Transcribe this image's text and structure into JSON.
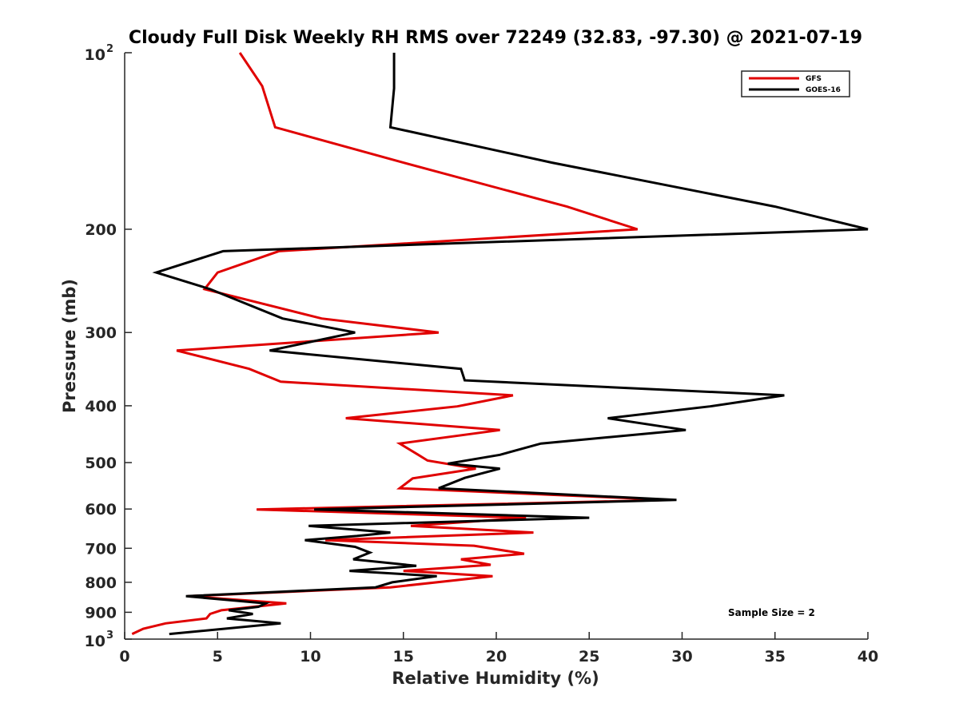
{
  "chart_data": {
    "type": "line",
    "title": "Cloudy Full Disk Weekly RH RMS over 72249 (32.83, -97.30) @ 2021-07-19",
    "xlabel": "Relative Humidity (%)",
    "ylabel": "Pressure (mb)",
    "xlim": [
      0,
      40
    ],
    "ylim": [
      100,
      1000
    ],
    "y_scale": "log",
    "y_reversed": true,
    "x_ticks": [
      "0",
      "5",
      "10",
      "15",
      "20",
      "25",
      "30",
      "35",
      "40"
    ],
    "y_ticks": [
      {
        "value": 100,
        "base": "10",
        "exp": "2"
      },
      {
        "value": 200,
        "label": "200"
      },
      {
        "value": 300,
        "label": "300"
      },
      {
        "value": 400,
        "label": "400"
      },
      {
        "value": 500,
        "label": "500"
      },
      {
        "value": 600,
        "label": "600"
      },
      {
        "value": 700,
        "label": "700"
      },
      {
        "value": 800,
        "label": "800"
      },
      {
        "value": 900,
        "label": "900"
      },
      {
        "value": 1000,
        "base": "10",
        "exp": "3"
      }
    ],
    "legend_position": "top-right",
    "grid": false,
    "annotation": "Sample Size = 2",
    "series": [
      {
        "name": "GFS",
        "color": "#e00000",
        "points": [
          [
            6.2,
            100
          ],
          [
            7.4,
            114
          ],
          [
            8.1,
            134
          ],
          [
            15.0,
            154
          ],
          [
            23.8,
            183
          ],
          [
            27.6,
            200
          ],
          [
            8.3,
            218
          ],
          [
            5.0,
            237
          ],
          [
            4.3,
            253
          ],
          [
            10.6,
            284
          ],
          [
            16.9,
            300
          ],
          [
            2.8,
            322
          ],
          [
            6.7,
            346
          ],
          [
            8.4,
            364
          ],
          [
            20.9,
            384
          ],
          [
            17.9,
            401
          ],
          [
            11.9,
            420
          ],
          [
            20.2,
            440
          ],
          [
            14.8,
            464
          ],
          [
            15.8,
            485
          ],
          [
            16.3,
            496
          ],
          [
            18.9,
            512
          ],
          [
            15.5,
            532
          ],
          [
            14.8,
            553
          ],
          [
            29.4,
            579
          ],
          [
            7.1,
            601
          ],
          [
            21.6,
            621
          ],
          [
            15.4,
            641
          ],
          [
            22.0,
            658
          ],
          [
            10.8,
            678
          ],
          [
            18.8,
            693
          ],
          [
            21.5,
            715
          ],
          [
            18.1,
            731
          ],
          [
            19.7,
            747
          ],
          [
            15.0,
            765
          ],
          [
            19.8,
            781
          ],
          [
            14.3,
            816
          ],
          [
            3.4,
            845
          ],
          [
            8.7,
            869
          ],
          [
            5.2,
            893
          ],
          [
            4.6,
            906
          ],
          [
            4.4,
            922
          ],
          [
            2.2,
            940
          ],
          [
            1.0,
            960
          ],
          [
            0.4,
            980
          ]
        ]
      },
      {
        "name": "GOES-16",
        "color": "#000000",
        "points": [
          [
            14.5,
            100
          ],
          [
            14.5,
            115
          ],
          [
            14.3,
            134
          ],
          [
            23.0,
            154
          ],
          [
            35.0,
            183
          ],
          [
            40.0,
            200
          ],
          [
            5.3,
            218
          ],
          [
            1.7,
            237
          ],
          [
            4.6,
            253
          ],
          [
            8.5,
            284
          ],
          [
            12.4,
            300
          ],
          [
            7.8,
            322
          ],
          [
            18.1,
            346
          ],
          [
            18.3,
            362
          ],
          [
            35.5,
            384
          ],
          [
            31.5,
            401
          ],
          [
            26.0,
            420
          ],
          [
            30.2,
            440
          ],
          [
            22.4,
            464
          ],
          [
            20.2,
            485
          ],
          [
            17.4,
            502
          ],
          [
            20.2,
            512
          ],
          [
            18.3,
            531
          ],
          [
            16.9,
            553
          ],
          [
            29.7,
            579
          ],
          [
            10.2,
            601
          ],
          [
            25.0,
            621
          ],
          [
            9.9,
            641
          ],
          [
            14.3,
            658
          ],
          [
            12.5,
            667
          ],
          [
            9.7,
            678
          ],
          [
            12.4,
            696
          ],
          [
            13.2,
            712
          ],
          [
            12.3,
            731
          ],
          [
            15.7,
            750
          ],
          [
            12.1,
            765
          ],
          [
            16.8,
            781
          ],
          [
            14.4,
            800
          ],
          [
            13.5,
            816
          ],
          [
            3.3,
            845
          ],
          [
            7.6,
            869
          ],
          [
            7.2,
            881
          ],
          [
            5.6,
            893
          ],
          [
            6.9,
            906
          ],
          [
            5.5,
            922
          ],
          [
            8.4,
            940
          ],
          [
            2.4,
            980
          ]
        ]
      }
    ]
  }
}
